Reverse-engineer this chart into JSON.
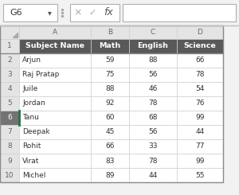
{
  "name_box": "G6",
  "col_headers": [
    "A",
    "B",
    "C",
    "D"
  ],
  "headers": [
    "Subject Name",
    "Math",
    "English",
    "Science"
  ],
  "rows": [
    [
      "Arjun",
      "59",
      "88",
      "66"
    ],
    [
      "Raj Pratap",
      "75",
      "56",
      "78"
    ],
    [
      "Juile",
      "88",
      "46",
      "54"
    ],
    [
      "Jordan",
      "92",
      "78",
      "76"
    ],
    [
      "Tanu",
      "60",
      "68",
      "99"
    ],
    [
      "Deepak",
      "45",
      "56",
      "44"
    ],
    [
      "Rohit",
      "66",
      "33",
      "77"
    ],
    [
      "Virat",
      "83",
      "78",
      "99"
    ],
    [
      "Michel",
      "89",
      "44",
      "55"
    ]
  ],
  "header_bg": "#595959",
  "header_fg": "#ffffff",
  "cell_bg": "#ffffff",
  "row_num_bg": "#e4e4e4",
  "row_num_fg": "#666666",
  "col_hdr_bg": "#e4e4e4",
  "col_hdr_fg": "#666666",
  "selected_row_excel": 6,
  "selected_row_num_bg": "#737373",
  "selected_row_num_fg": "#ffffff",
  "grid_color": "#d0d0d0",
  "grid_color_dark": "#999999",
  "green_border": "#217346",
  "formula_bg": "#f2f2f2",
  "font_size": 6.5,
  "header_font_size": 6.8
}
